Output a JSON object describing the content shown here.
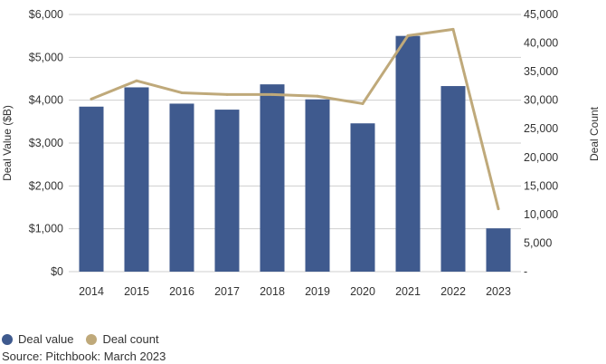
{
  "chart_data": {
    "type": "bar",
    "categories": [
      "2014",
      "2015",
      "2016",
      "2017",
      "2018",
      "2019",
      "2020",
      "2021",
      "2022",
      "2023"
    ],
    "series": [
      {
        "name": "Deal value",
        "type": "bar",
        "axis": "left",
        "color": "#3f5a8e",
        "values": [
          3850,
          4300,
          3920,
          3780,
          4370,
          4020,
          3460,
          5500,
          4330,
          1010
        ]
      },
      {
        "name": "Deal count",
        "type": "line",
        "axis": "right",
        "color": "#bfa97a",
        "values": [
          30200,
          33400,
          31300,
          31000,
          31000,
          30700,
          29400,
          41300,
          42400,
          11000
        ]
      }
    ],
    "ylabel": "Deal Value ($B)",
    "y2label": "Deal Count",
    "ylim": [
      0,
      6000
    ],
    "y2lim": [
      0,
      45000
    ],
    "yticks": [
      "$0",
      "$1,000",
      "$2,000",
      "$3,000",
      "$4,000",
      "$5,000",
      "$6,000"
    ],
    "y2ticks": [
      "-",
      "5,000",
      "10,000",
      "15,000",
      "20,000",
      "25,000",
      "30,000",
      "35,000",
      "40,000",
      "45,000"
    ],
    "grid": true,
    "legend_position": "bottom-left"
  },
  "legend": {
    "value_label": "Deal value",
    "count_label": "Deal count"
  },
  "source": "Source: Pitchbook: March 2023"
}
